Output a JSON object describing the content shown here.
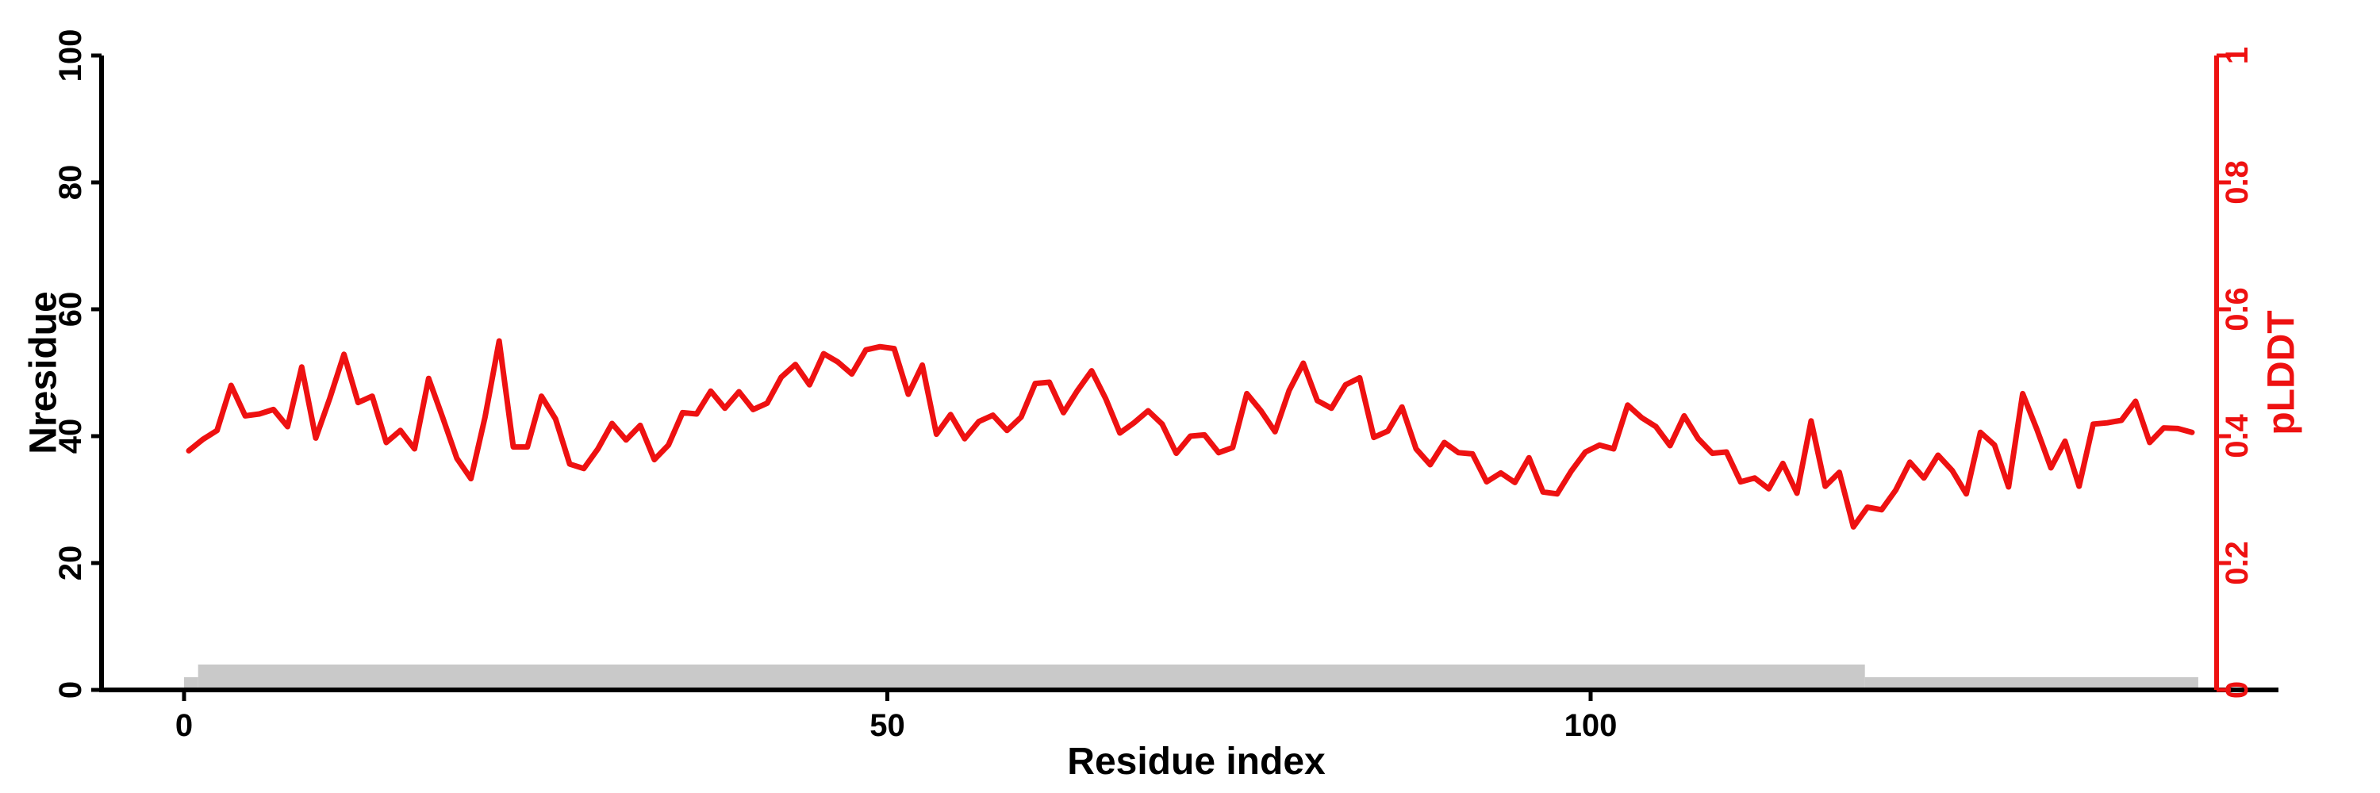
{
  "figure": {
    "background": "#ffffff",
    "axis_color": "#000000",
    "accent_red": "#ee1111",
    "bar_color": "#c9c9c9"
  },
  "chart_data": {
    "type": "line",
    "title": "",
    "grid": false,
    "legend": "none",
    "x_axis": {
      "label": "Residue index",
      "ticks": [
        "0",
        "50",
        "100"
      ],
      "tick_values": [
        0,
        50,
        100
      ],
      "range": [
        0,
        143
      ]
    },
    "y_left_axis": {
      "label": "Nresidue",
      "ticks": [
        "0",
        "20",
        "40",
        "60",
        "80",
        "100"
      ],
      "tick_values": [
        0,
        20,
        40,
        60,
        80,
        100
      ],
      "range": [
        0,
        100
      ]
    },
    "y_right_axis": {
      "label": "pLDDT",
      "ticks": [
        "0",
        "0.2",
        "0.4",
        "0.6",
        "0.8",
        "1"
      ],
      "tick_values": [
        0,
        0.2,
        0.4,
        0.6,
        0.8,
        1
      ],
      "range": [
        0,
        1
      ],
      "color": "#ee1111"
    },
    "series": [
      {
        "name": "pLDDT",
        "type": "line",
        "axis": "right",
        "color": "#ee1111",
        "x_start_residue": 1,
        "x_step": 1,
        "values": [
          0.377,
          0.395,
          0.409,
          0.48,
          0.432,
          0.435,
          0.442,
          0.415,
          0.509,
          0.397,
          0.46,
          0.529,
          0.453,
          0.463,
          0.39,
          0.409,
          0.38,
          0.491,
          0.429,
          0.365,
          0.333,
          0.43,
          0.55,
          0.383,
          0.383,
          0.463,
          0.427,
          0.356,
          0.349,
          0.38,
          0.42,
          0.394,
          0.417,
          0.363,
          0.386,
          0.437,
          0.435,
          0.471,
          0.444,
          0.47,
          0.442,
          0.452,
          0.493,
          0.513,
          0.481,
          0.53,
          0.517,
          0.498,
          0.536,
          0.541,
          0.538,
          0.466,
          0.512,
          0.403,
          0.434,
          0.396,
          0.423,
          0.433,
          0.409,
          0.43,
          0.483,
          0.485,
          0.437,
          0.472,
          0.503,
          0.459,
          0.405,
          0.421,
          0.44,
          0.419,
          0.373,
          0.4,
          0.402,
          0.374,
          0.382,
          0.467,
          0.44,
          0.407,
          0.472,
          0.515,
          0.456,
          0.444,
          0.481,
          0.492,
          0.398,
          0.408,
          0.446,
          0.38,
          0.355,
          0.39,
          0.374,
          0.372,
          0.328,
          0.342,
          0.327,
          0.366,
          0.312,
          0.309,
          0.345,
          0.375,
          0.386,
          0.38,
          0.449,
          0.429,
          0.415,
          0.385,
          0.432,
          0.396,
          0.373,
          0.375,
          0.328,
          0.334,
          0.317,
          0.357,
          0.31,
          0.424,
          0.321,
          0.343,
          0.257,
          0.288,
          0.284,
          0.315,
          0.359,
          0.334,
          0.37,
          0.346,
          0.309,
          0.406,
          0.386,
          0.32,
          0.467,
          0.411,
          0.35,
          0.392,
          0.321,
          0.419,
          0.421,
          0.425,
          0.455,
          0.39,
          0.413,
          0.412,
          0.406
        ]
      },
      {
        "name": "Nresidue",
        "type": "step-bars",
        "axis": "left",
        "color": "#c9c9c9",
        "segments": [
          {
            "from_residue": 0,
            "to_residue": 1,
            "value": 2
          },
          {
            "from_residue": 1,
            "to_residue": 119.5,
            "value": 4
          },
          {
            "from_residue": 119.5,
            "to_residue": 143.2,
            "value": 2
          }
        ]
      }
    ]
  }
}
